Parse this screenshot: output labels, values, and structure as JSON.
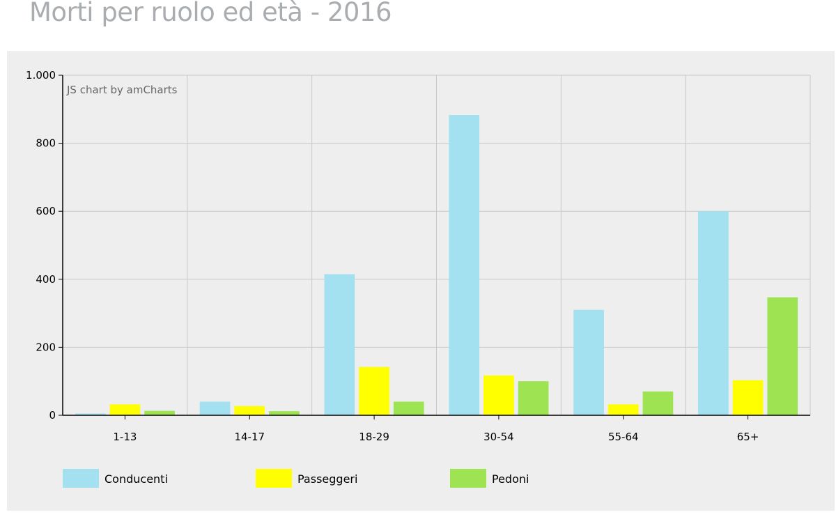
{
  "page": {
    "title": "Morti per ruolo ed età - 2016"
  },
  "chart_credit": "JS chart by amCharts",
  "chart_data": {
    "type": "bar",
    "title": "Morti per ruolo ed età - 2016",
    "xlabel": "",
    "ylabel": "",
    "categories": [
      "1-13",
      "14-17",
      "18-29",
      "30-54",
      "55-64",
      "65+"
    ],
    "series": [
      {
        "name": "Conducenti",
        "color": "#a3e0f0",
        "values": [
          5,
          40,
          415,
          883,
          310,
          600
        ]
      },
      {
        "name": "Passeggeri",
        "color": "#ffff00",
        "values": [
          32,
          27,
          142,
          117,
          32,
          103
        ]
      },
      {
        "name": "Pedoni",
        "color": "#9de352",
        "values": [
          13,
          12,
          40,
          100,
          70,
          347
        ]
      }
    ],
    "ylim": [
      0,
      1000
    ],
    "yticks": [
      0,
      200,
      400,
      600,
      800,
      1000
    ],
    "ytick_labels": [
      "0",
      "200",
      "400",
      "600",
      "800",
      "1.000"
    ],
    "grid": true,
    "legend_position": "bottom"
  }
}
